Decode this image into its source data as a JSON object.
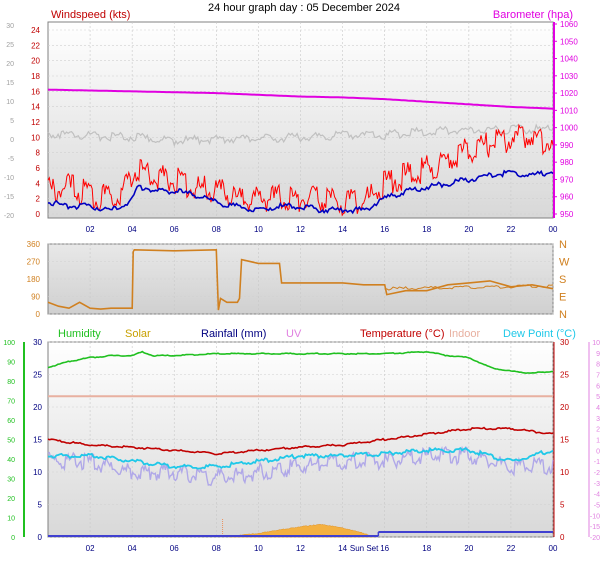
{
  "title": "24 hour graph day : 05 December 2024",
  "colors": {
    "wind": "#ff0000",
    "gust_grey": "#c0c0c0",
    "wind_dark": "#0000c0",
    "baro": "#e000e0",
    "dir": "#d08020",
    "humidity": "#20c020",
    "solar": "#c8a000",
    "rain": "#000080",
    "uv": "#e080e0",
    "temp": "#c00000",
    "indoor": "#e8b0a0",
    "dewpoint": "#20c8e8",
    "feels": "#b0a8e8",
    "solar_fill": "#f4b040",
    "rain_line": "#4040d0"
  },
  "x_ticks": [
    "02",
    "04",
    "06",
    "08",
    "10",
    "12",
    "14",
    "16",
    "18",
    "20",
    "22",
    "00"
  ],
  "x_ticks_bottom": [
    "02",
    "04",
    "06",
    "08",
    "10",
    "12",
    "14",
    "16",
    "18",
    "20",
    "22",
    "00"
  ],
  "sun_label": "Sun Set",
  "chart_data": [
    {
      "type": "line",
      "panel": "wind_baro",
      "left_axis_label": "Windspeed (kts)",
      "right_axis_label": "Barometer (hpa)",
      "left_ticks_red": [
        "24",
        "22",
        "20",
        "18",
        "16",
        "14",
        "12",
        "10",
        "8",
        "6",
        "4",
        "2",
        "0"
      ],
      "left_ticks_grey": [
        "30",
        "25",
        "20",
        "15",
        "10",
        "5",
        "0",
        "-5",
        "-10",
        "-15",
        "-20"
      ],
      "right_ticks": [
        "1060",
        "1050",
        "1040",
        "1030",
        "1020",
        "1010",
        "1000",
        "990",
        "980",
        "970",
        "960",
        "950"
      ],
      "ylim_left": [
        0,
        24
      ],
      "ylim_right": [
        950,
        1060
      ],
      "series": [
        {
          "key": "wind_avg",
          "x": [
            0,
            1,
            2,
            3,
            3.5,
            4,
            4.3,
            4.6,
            5,
            6,
            7,
            8,
            9,
            10,
            11,
            12,
            13,
            14,
            15,
            16,
            17,
            18,
            19,
            20,
            21,
            22,
            23,
            24
          ],
          "values": [
            1.5,
            1,
            1,
            0.5,
            1,
            2,
            3.5,
            3.5,
            3,
            3,
            2.5,
            1.5,
            1,
            0.5,
            1,
            1,
            0.5,
            0.5,
            0.5,
            2,
            3,
            3.5,
            4,
            4.5,
            5,
            5.5,
            5,
            5.5
          ]
        },
        {
          "key": "wind_gust",
          "x": [
            0,
            1,
            2,
            3,
            3.5,
            4,
            4.3,
            4.6,
            5,
            6,
            7,
            8,
            9,
            10,
            11,
            12,
            13,
            14,
            15,
            16,
            17,
            18,
            19,
            20,
            21,
            22,
            23,
            24
          ],
          "values": [
            3,
            3.5,
            2.5,
            2,
            3,
            5,
            6,
            5.5,
            5,
            4.5,
            3.5,
            3,
            2,
            2,
            2,
            2,
            2,
            1.5,
            1.5,
            4,
            5,
            6,
            7,
            8.5,
            9,
            10,
            10,
            9
          ]
        },
        {
          "key": "temp_grey",
          "x": [
            0,
            2,
            4,
            6,
            8,
            10,
            12,
            14,
            16,
            18,
            20,
            22,
            24
          ],
          "values": [
            1.5,
            0.8,
            0.5,
            -0.5,
            0,
            0,
            0.5,
            1,
            1,
            2,
            2.5,
            2.5,
            2.5
          ]
        },
        {
          "key": "barometer",
          "x": [
            0,
            2,
            4,
            6,
            8,
            10,
            12,
            14,
            16,
            18,
            20,
            22,
            24
          ],
          "values": [
            1022,
            1021.5,
            1021,
            1020.5,
            1020,
            1019,
            1018,
            1017.5,
            1016.5,
            1015,
            1013.5,
            1012,
            1011
          ]
        }
      ]
    },
    {
      "type": "line",
      "panel": "direction",
      "left_ticks": [
        "360",
        "270",
        "180",
        "90",
        "0"
      ],
      "right_ticks": [
        "N",
        "W",
        "S",
        "E",
        "N"
      ],
      "ylim": [
        0,
        360
      ],
      "series": [
        {
          "key": "wind_dir",
          "x": [
            0,
            0.5,
            1,
            1.5,
            2,
            2.5,
            3,
            3.5,
            4,
            4.05,
            4.1,
            6,
            8,
            8.1,
            8.2,
            8.5,
            9,
            9.1,
            9.2,
            10,
            11,
            11.1,
            12,
            12.5,
            13,
            13.5,
            14,
            15,
            16,
            16.1,
            17,
            18,
            19,
            20,
            21,
            22,
            23,
            24
          ],
          "values": [
            60,
            40,
            30,
            60,
            30,
            25,
            30,
            30,
            30,
            320,
            330,
            325,
            330,
            20,
            80,
            60,
            60,
            80,
            280,
            260,
            260,
            160,
            160,
            160,
            160,
            160,
            160,
            150,
            150,
            100,
            120,
            120,
            150,
            160,
            170,
            140,
            150,
            130
          ]
        }
      ]
    },
    {
      "type": "line",
      "panel": "multi",
      "legend": [
        "Humidity",
        "Solar",
        "Rainfall (mm)",
        "UV",
        "Temperature (°C)",
        "Indoor",
        "Dew Point (°C)"
      ],
      "left_ticks": [
        "100",
        "90",
        "80",
        "70",
        "60",
        "50",
        "40",
        "30",
        "20",
        "10",
        "0"
      ],
      "left_ticks_2": [
        "30",
        "25",
        "20",
        "15",
        "10",
        "5",
        "0"
      ],
      "right_ticks": [
        "30",
        "25",
        "20",
        "15",
        "10",
        "5",
        "0"
      ],
      "right_ticks_2": [
        "10",
        "9",
        "8",
        "7",
        "6",
        "5",
        "4",
        "3",
        "2",
        "1",
        "0",
        "-1",
        "-2",
        "-3",
        "-4",
        "-5",
        "-10",
        "-15",
        "-20"
      ],
      "ylim_humidity": [
        0,
        100
      ],
      "ylim_temp": [
        -20,
        10
      ],
      "series": [
        {
          "key": "humidity",
          "x": [
            0,
            1,
            2,
            3,
            4,
            4.5,
            5,
            6,
            8,
            10,
            12,
            14,
            16,
            18,
            19,
            20,
            21,
            22,
            23,
            24
          ],
          "values": [
            87,
            90,
            92,
            93,
            93,
            95,
            93,
            93,
            94,
            94,
            94,
            94,
            94,
            95,
            93,
            92,
            87,
            85,
            84,
            85
          ]
        },
        {
          "key": "temperature",
          "x": [
            0,
            2,
            4,
            6,
            8,
            10,
            12,
            14,
            16,
            18,
            20,
            22,
            24
          ],
          "values": [
            1,
            0.5,
            0.3,
            0,
            -0.3,
            0,
            0.3,
            0.5,
            1,
            1.5,
            2,
            2,
            1.5
          ]
        },
        {
          "key": "indoor",
          "x": [
            0,
            24
          ],
          "values": [
            5,
            5
          ]
        },
        {
          "key": "dew_point",
          "x": [
            0,
            2,
            4,
            6,
            8,
            10,
            12,
            14,
            16,
            18,
            20,
            22,
            24
          ],
          "values": [
            -0.5,
            -0.5,
            -1,
            -1.5,
            -1.5,
            -1,
            -0.5,
            -0.5,
            -0.3,
            0,
            0,
            -1,
            0
          ]
        },
        {
          "key": "feels",
          "x": [
            0,
            2,
            4,
            6,
            8,
            10,
            12,
            14,
            16,
            18,
            20,
            22,
            24
          ],
          "values": [
            -1,
            -1,
            -2,
            -2,
            -2.5,
            -2,
            -1.5,
            -1,
            -1,
            -0.5,
            -0.5,
            -1.5,
            -1.5
          ]
        },
        {
          "key": "solar",
          "x": [
            8.6,
            9,
            10,
            11,
            12,
            13,
            14,
            15,
            15.5
          ],
          "values": [
            0,
            0.5,
            1.5,
            3,
            4.5,
            5.5,
            4,
            1.5,
            0
          ]
        },
        {
          "key": "rainfall",
          "x": [
            0,
            24
          ],
          "values": [
            0,
            0
          ]
        }
      ]
    }
  ]
}
